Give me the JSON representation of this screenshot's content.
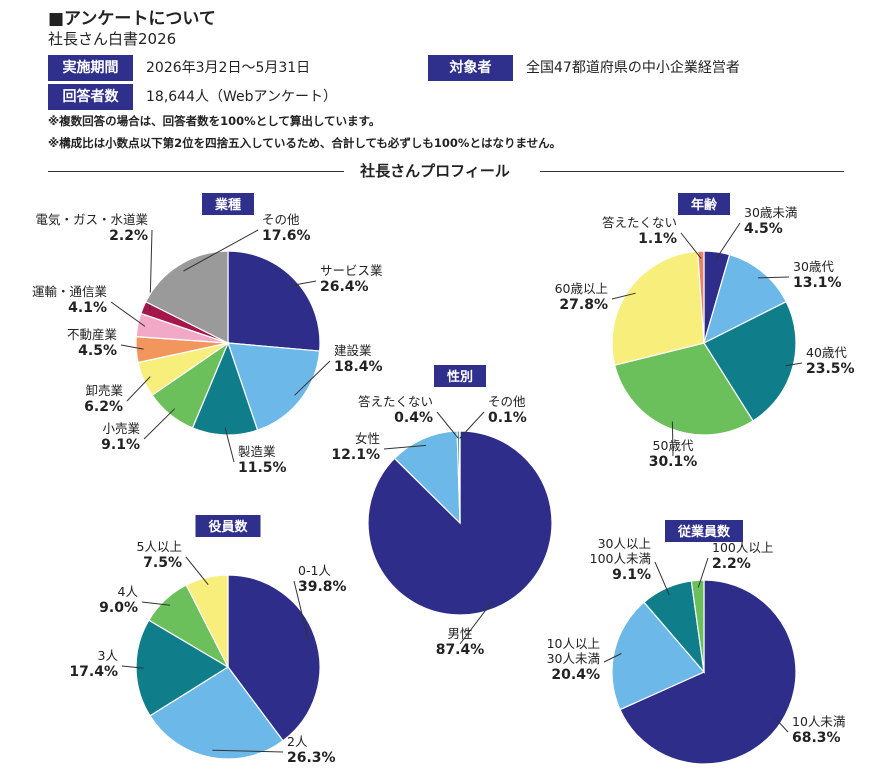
{
  "header": {
    "title": "■アンケートについて",
    "subtitle": "社長さん白書2026",
    "period_label": "実施期間",
    "period_value": "2026年3月2日〜5月31日",
    "target_label": "対象者",
    "target_value": "全国47都道府県の中小企業経営者",
    "respondents_label": "回答者数",
    "respondents_value": "18,644人（Webアンケート）",
    "note1": "※複数回答の場合は、回答者数を100%として算出しています。",
    "note2": "※構成比は小数点以下第2位を四捨五入しているため、合計しても必ずしも100%とはなりません。"
  },
  "section_title": "社長さんプロフィール",
  "chart_data": [
    {
      "type": "pie",
      "title": "業種",
      "categories": [
        "サービス業",
        "建設業",
        "製造業",
        "小売業",
        "卸売業",
        "不動産業",
        "運輸・通信業",
        "電気・ガス・水道業",
        "その他"
      ],
      "values": [
        26.4,
        18.4,
        11.5,
        9.1,
        6.2,
        4.5,
        4.1,
        2.2,
        17.6
      ],
      "colors": [
        "#2e2e8a",
        "#6cb8e8",
        "#0f7d8a",
        "#6cc05c",
        "#f7ee7c",
        "#f3965e",
        "#f2a9c8",
        "#a3174a",
        "#9a9a9a"
      ]
    },
    {
      "type": "pie",
      "title": "年齢",
      "categories": [
        "30歳未満",
        "30歳代",
        "40歳代",
        "50歳代",
        "60歳以上",
        "答えたくない"
      ],
      "values": [
        4.5,
        13.1,
        23.5,
        30.1,
        27.8,
        1.1
      ],
      "colors": [
        "#2e2e8a",
        "#6cb8e8",
        "#0f7d8a",
        "#6cc05c",
        "#f7ee7c",
        "#e8836a"
      ]
    },
    {
      "type": "pie",
      "title": "性別",
      "categories": [
        "男性",
        "女性",
        "答えたくない",
        "その他"
      ],
      "values": [
        87.4,
        12.1,
        0.4,
        0.1
      ],
      "colors": [
        "#2e2e8a",
        "#6cb8e8",
        "#0f7d8a",
        "#6cc05c"
      ]
    },
    {
      "type": "pie",
      "title": "役員数",
      "categories": [
        "0-1人",
        "2人",
        "3人",
        "4人",
        "5人以上"
      ],
      "values": [
        39.8,
        26.3,
        17.4,
        9.0,
        7.5
      ],
      "colors": [
        "#2e2e8a",
        "#6cb8e8",
        "#0f7d8a",
        "#6cc05c",
        "#f7ee7c"
      ]
    },
    {
      "type": "pie",
      "title": "従業員数",
      "categories": [
        "10人未満",
        "10人以上\n30人未満",
        "30人以上\n100人未満",
        "100人以上"
      ],
      "values": [
        68.3,
        20.4,
        9.1,
        2.2
      ],
      "colors": [
        "#2e2e8a",
        "#6cb8e8",
        "#0f7d8a",
        "#6cc05c"
      ]
    }
  ]
}
